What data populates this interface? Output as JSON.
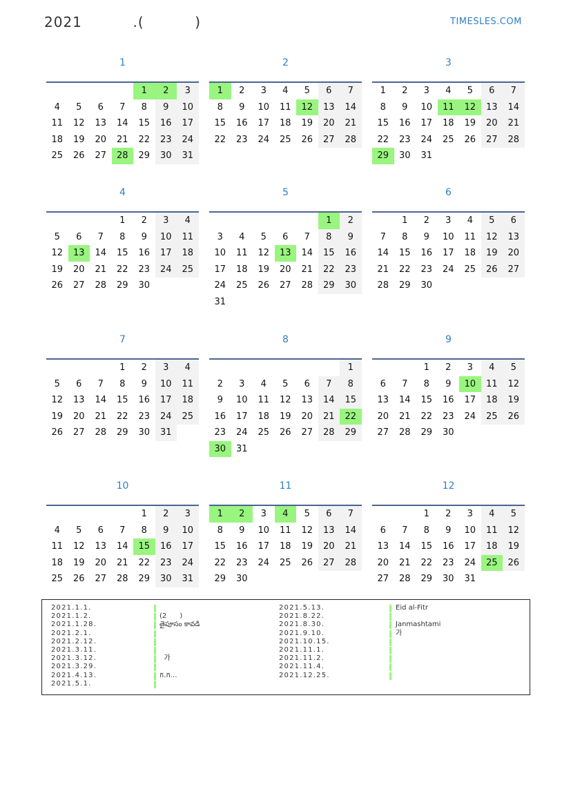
{
  "header": {
    "title": "2021          .(          )",
    "site": "TIMESLES.COM"
  },
  "year": 2021,
  "colors": {
    "accent": "#2f7fc1",
    "holiday": "#99f57f",
    "weekend": "#f2f2f2",
    "rule": "#4a6491"
  },
  "week_start": "Monday",
  "months": [
    {
      "label": "1",
      "first_weekday": 5,
      "days": 31,
      "holidays": [
        1,
        2,
        28
      ]
    },
    {
      "label": "2",
      "first_weekday": 1,
      "days": 28,
      "holidays": [
        1,
        12
      ]
    },
    {
      "label": "3",
      "first_weekday": 1,
      "days": 31,
      "holidays": [
        11,
        12,
        29
      ]
    },
    {
      "label": "4",
      "first_weekday": 4,
      "days": 30,
      "holidays": [
        13
      ]
    },
    {
      "label": "5",
      "first_weekday": 6,
      "days": 31,
      "holidays": [
        1,
        13
      ]
    },
    {
      "label": "6",
      "first_weekday": 2,
      "days": 30,
      "holidays": []
    },
    {
      "label": "7",
      "first_weekday": 4,
      "days": 31,
      "holidays": []
    },
    {
      "label": "8",
      "first_weekday": 7,
      "days": 31,
      "holidays": [
        22,
        30
      ]
    },
    {
      "label": "9",
      "first_weekday": 3,
      "days": 30,
      "holidays": [
        10
      ]
    },
    {
      "label": "10",
      "first_weekday": 5,
      "days": 31,
      "holidays": [
        15
      ]
    },
    {
      "label": "11",
      "first_weekday": 1,
      "days": 30,
      "holidays": [
        1,
        2,
        4
      ]
    },
    {
      "label": "12",
      "first_weekday": 3,
      "days": 31,
      "holidays": [
        25
      ]
    }
  ],
  "legend": {
    "left": [
      {
        "date": "2021.1.1.",
        "name": ""
      },
      {
        "date": "2021.1.2.",
        "name": "(2      )"
      },
      {
        "date": "2021.1.28.",
        "name": "తైపూసం కావడి"
      },
      {
        "date": "2021.2.1.",
        "name": ""
      },
      {
        "date": "2021.2.12.",
        "name": ""
      },
      {
        "date": "2021.3.11.",
        "name": ""
      },
      {
        "date": "2021.3.12.",
        "name": "  가"
      },
      {
        "date": "2021.3.29.",
        "name": ""
      },
      {
        "date": "2021.4.13.",
        "name": "ក.ក..."
      },
      {
        "date": "2021.5.1.",
        "name": ""
      }
    ],
    "right": [
      {
        "date": "2021.5.13.",
        "name": "Eid al-Fitr"
      },
      {
        "date": "2021.8.22.",
        "name": ""
      },
      {
        "date": "2021.8.30.",
        "name": "Janmashtami"
      },
      {
        "date": "2021.9.10.",
        "name": "가"
      },
      {
        "date": "2021.10.15.",
        "name": ""
      },
      {
        "date": "2021.11.1.",
        "name": ""
      },
      {
        "date": "2021.11.2.",
        "name": ""
      },
      {
        "date": "2021.11.4.",
        "name": ""
      },
      {
        "date": "2021.12.25.",
        "name": ""
      }
    ]
  }
}
